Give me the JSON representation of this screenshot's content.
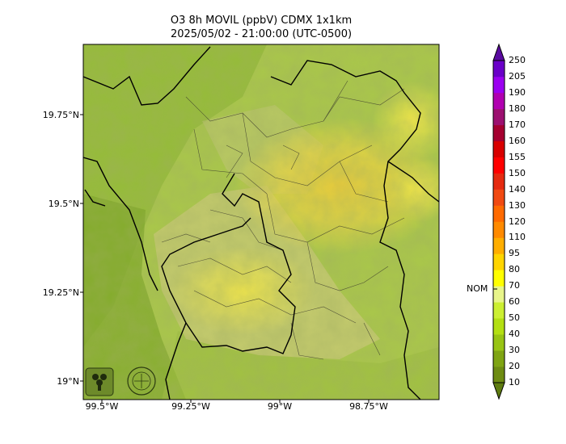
{
  "map": {
    "title_line1": "O3 8h MOVIL (ppbV) CDMX 1x1km",
    "title_line2": "2025/05/02 - 21:00:00 (UTC-0500)",
    "lat_labels": [
      "19.75°N",
      "19.5°N",
      "19.25°N",
      "19°N"
    ],
    "lon_labels": [
      "99.5°W",
      "99.25°W",
      "99°W",
      "98.75°W"
    ],
    "logos": [
      "sedema-logo",
      "cdmx-logo"
    ]
  },
  "colorbar": {
    "ticks": [
      "10",
      "20",
      "30",
      "40",
      "50",
      "60",
      "70",
      "80",
      "95",
      "110",
      "120",
      "130",
      "140",
      "150",
      "155",
      "160",
      "170",
      "180",
      "190",
      "205",
      "250"
    ],
    "colors": [
      "#6e8c12",
      "#7fa413",
      "#98c414",
      "#b3df12",
      "#ccef32",
      "#e8f58a",
      "#ffff00",
      "#ffd500",
      "#ffae00",
      "#ff8a00",
      "#ff6a00",
      "#f14a12",
      "#e52a10",
      "#ff0000",
      "#d80000",
      "#a50030",
      "#9c1070",
      "#b000b0",
      "#9b00f0",
      "#6a00c8"
    ],
    "nom_label": "NOM",
    "nom_value": 70
  }
}
